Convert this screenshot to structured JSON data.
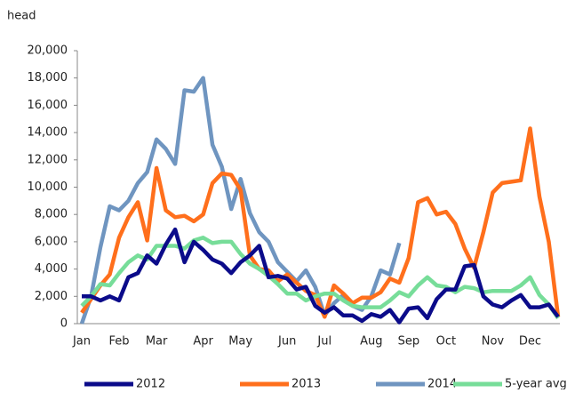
{
  "chart_data": {
    "type": "line",
    "y_axis_label": "head",
    "categories": [
      "Jan",
      null,
      null,
      null,
      "Feb",
      null,
      null,
      null,
      "Mar",
      null,
      null,
      null,
      null,
      "Apr",
      null,
      null,
      null,
      "May",
      null,
      null,
      null,
      null,
      "Jun",
      null,
      null,
      null,
      "Jul",
      null,
      null,
      null,
      null,
      "Aug",
      null,
      null,
      null,
      "Sep",
      null,
      null,
      null,
      "Oct",
      null,
      null,
      null,
      null,
      "Nov",
      null,
      null,
      null,
      "Dec",
      null,
      null,
      null
    ],
    "series": [
      {
        "name": "2012",
        "color": "#0b0b8a",
        "values": [
          2000,
          2000,
          1700,
          2000,
          1700,
          3400,
          3700,
          5000,
          4400,
          5800,
          6900,
          4500,
          6000,
          5400,
          4700,
          4400,
          3700,
          4500,
          5000,
          5700,
          3400,
          3500,
          3300,
          2500,
          2700,
          1300,
          800,
          1200,
          600,
          600,
          200,
          700,
          500,
          1000,
          100,
          1100,
          1200,
          400,
          1800,
          2500,
          2500,
          4200,
          4300,
          2000,
          1400,
          1200,
          1700,
          2100,
          1200,
          1200,
          1400,
          500
        ]
      },
      {
        "name": "2013",
        "color": "#ff6f1c",
        "values": [
          800,
          1800,
          2800,
          3600,
          6300,
          7800,
          8900,
          6100,
          11400,
          8300,
          7800,
          7900,
          7500,
          8000,
          10300,
          11000,
          10900,
          9800,
          5000,
          4000,
          3900,
          3100,
          3600,
          3000,
          2400,
          2100,
          500,
          2800,
          2200,
          1500,
          1900,
          1900,
          2300,
          3300,
          3000,
          4800,
          8900,
          9200,
          8000,
          8200,
          7300,
          5500,
          4100,
          6700,
          9600,
          10300,
          10400,
          10500,
          14300,
          9300,
          6000,
          500
        ]
      },
      {
        "name": "2014",
        "color": "#6f95c0",
        "values": [
          0,
          2000,
          5600,
          8600,
          8300,
          9000,
          10300,
          11100,
          13500,
          12800,
          11700,
          17100,
          17000,
          18000,
          13100,
          11500,
          8400,
          10600,
          8100,
          6700,
          6000,
          4500,
          3800,
          3100,
          3900,
          2700,
          600,
          1500,
          2100,
          1300,
          1000,
          2000,
          3900,
          3600,
          5900,
          null,
          null,
          null,
          null,
          null,
          null,
          null,
          null,
          null,
          null,
          null,
          null,
          null,
          null,
          null,
          null,
          null
        ]
      },
      {
        "name": "5-year avg.",
        "color": "#77dd99",
        "values": [
          1300,
          2000,
          2900,
          2800,
          3700,
          4500,
          5000,
          4700,
          5700,
          5700,
          5700,
          5500,
          6100,
          6300,
          5900,
          6000,
          6000,
          5100,
          4400,
          4000,
          3500,
          2900,
          2200,
          2200,
          1700,
          2000,
          2200,
          2200,
          1700,
          1300,
          1200,
          1200,
          1200,
          1700,
          2300,
          2000,
          2800,
          3400,
          2800,
          2700,
          2300,
          2700,
          2600,
          2300,
          2400,
          2400,
          2400,
          2800,
          3400,
          2100,
          1400,
          400
        ]
      }
    ],
    "ylim": [
      0,
      20000
    ],
    "yticks": [
      0,
      {
        "value": 2000,
        "label": "2,000"
      },
      {
        "value": 4000,
        "label": "4,000"
      },
      {
        "value": 6000,
        "label": "6,000"
      },
      {
        "value": 8000,
        "label": "8,000"
      },
      {
        "value": 10000,
        "label": "10,000"
      },
      {
        "value": 12000,
        "label": "12,000"
      },
      {
        "value": 14000,
        "label": "14,000"
      },
      {
        "value": 16000,
        "label": "16,000"
      },
      {
        "value": 18000,
        "label": "18,000"
      },
      {
        "value": 20000,
        "label": "20,000"
      }
    ],
    "grid": false,
    "legend": "bottom"
  }
}
